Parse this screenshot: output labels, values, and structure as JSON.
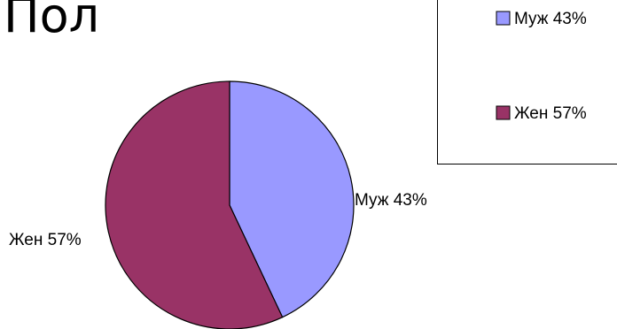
{
  "chart_data": {
    "type": "pie",
    "title": "Пол",
    "categories": [
      "Муж 43%",
      "Жен 57%"
    ],
    "values": [
      43,
      57
    ],
    "slice_labels": [
      "Муж 43%",
      "Жен 57%"
    ],
    "colors": [
      "#9999ff",
      "#993366"
    ],
    "start": "12 o'clock, clockwise",
    "legend": {
      "placement": "top-right",
      "entries": [
        "Муж 43%",
        "Жен 57%"
      ]
    }
  }
}
